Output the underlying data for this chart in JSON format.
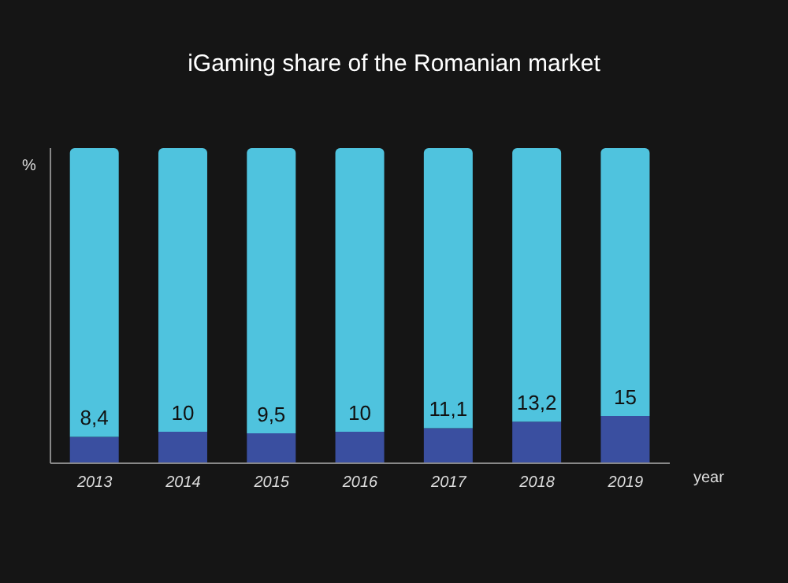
{
  "chart_data": {
    "type": "bar",
    "title": "iGaming share of the Romanian market",
    "xlabel": "year",
    "ylabel": "%",
    "categories": [
      "2013",
      "2014",
      "2015",
      "2016",
      "2017",
      "2018",
      "2019"
    ],
    "stacked": true,
    "tick_labels": "x",
    "legend": false,
    "series": [
      {
        "color": "#3a4fa0",
        "values": [
          8.4,
          10,
          9.5,
          10,
          11.1,
          13.2,
          15
        ],
        "value_labels": [
          "8,4",
          "10",
          "9,5",
          "10",
          "11,1",
          "13,2",
          "15"
        ]
      },
      {
        "color": "#4fc3de",
        "values": [
          91.6,
          90,
          90.5,
          90,
          88.9,
          86.8,
          85
        ]
      }
    ]
  }
}
